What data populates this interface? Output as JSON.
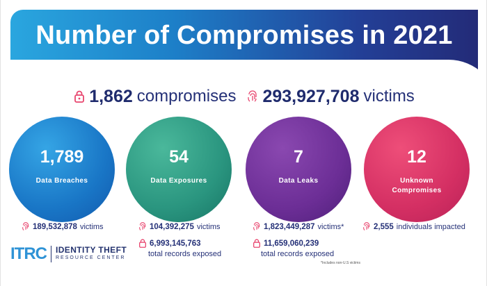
{
  "title": "Number of Compromises in 2021",
  "totals": {
    "compromises_value": "1,862",
    "compromises_label": "compromises",
    "victims_value": "293,927,708",
    "victims_label": "victims"
  },
  "categories": [
    {
      "value": "1,789",
      "label": "Data Breaches",
      "victims_value": "189,532,878",
      "victims_label": "victims",
      "records_value": "",
      "records_label": ""
    },
    {
      "value": "54",
      "label": "Data Exposures",
      "victims_value": "104,392,275",
      "victims_label": "victims",
      "records_value": "6,993,145,763",
      "records_label": "total records exposed"
    },
    {
      "value": "7",
      "label": "Data Leaks",
      "victims_value": "1,823,449,287",
      "victims_label": "victims*",
      "records_value": "11,659,060,239",
      "records_label": "total records exposed"
    },
    {
      "value": "12",
      "label": "Unknown Compromises",
      "victims_value": "2,555",
      "victims_label": "individuals impacted",
      "records_value": "",
      "records_label": ""
    }
  ],
  "footnote": "*Includes non-U.S victims",
  "logo": {
    "mark_a": "IT",
    "mark_b": "RC",
    "line1": "IDENTITY THEFT",
    "line2": "RESOURCE CENTER"
  },
  "icons": {
    "lock": "lock-icon",
    "fingerprint": "fingerprint-icon"
  },
  "colors": {
    "navy": "#1f2b6d",
    "accent_red": "#e8456e",
    "blue": "#1976c6",
    "green": "#2a957f",
    "purple": "#6c2e96",
    "pink": "#d42f63"
  }
}
